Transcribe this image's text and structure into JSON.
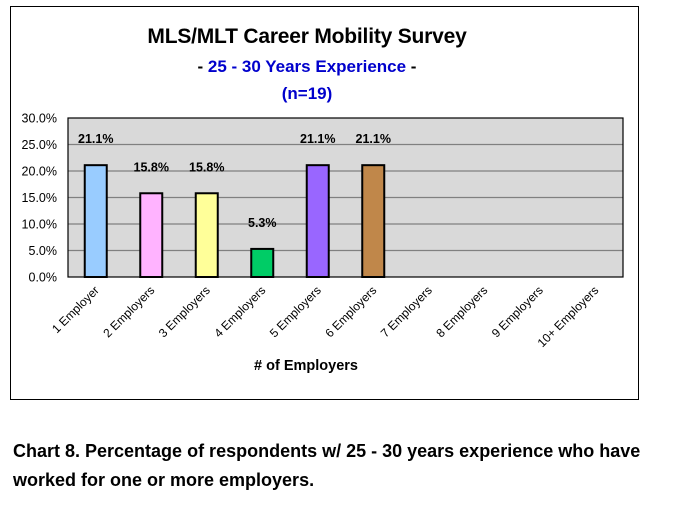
{
  "chart_data": {
    "type": "bar",
    "title": "MLS/MLT Career Mobility Survey",
    "subtitle_prefix": "- ",
    "subtitle": "25 - 30 Years Experience",
    "subtitle_suffix": " -",
    "sample_size_label": "(n=19)",
    "xlabel": "# of Employers",
    "ylabel": "",
    "categories": [
      "1 Employer",
      "2 Employers",
      "3 Employers",
      "4 Employers",
      "5 Employers",
      "6 Employers",
      "7 Employers",
      "8 Employers",
      "9 Employers",
      "10+ Employers"
    ],
    "values": [
      21.1,
      15.8,
      15.8,
      5.3,
      21.1,
      21.1,
      null,
      null,
      null,
      null
    ],
    "data_labels": [
      "21.1%",
      "15.8%",
      "15.8%",
      "5.3%",
      "21.1%",
      "21.1%",
      "",
      "",
      "",
      ""
    ],
    "bar_colors": [
      "#99CCFF",
      "#FFB3FF",
      "#FFFF99",
      "#00CC66",
      "#9966FF",
      "#C0874A",
      "",
      "",
      "",
      ""
    ],
    "ylim": [
      0,
      30
    ],
    "yticks": [
      0,
      5,
      10,
      15,
      20,
      25,
      30
    ],
    "ytick_labels": [
      "0.0%",
      "5.0%",
      "10.0%",
      "15.0%",
      "20.0%",
      "25.0%",
      "30.0%"
    ],
    "grid": true,
    "legend": "none",
    "plot_background": "#D9D9D9",
    "accent_color": "#0000CC"
  },
  "caption": "Chart 8. Percentage of respondents w/ 25 - 30 years experience who have worked for one or more employers."
}
